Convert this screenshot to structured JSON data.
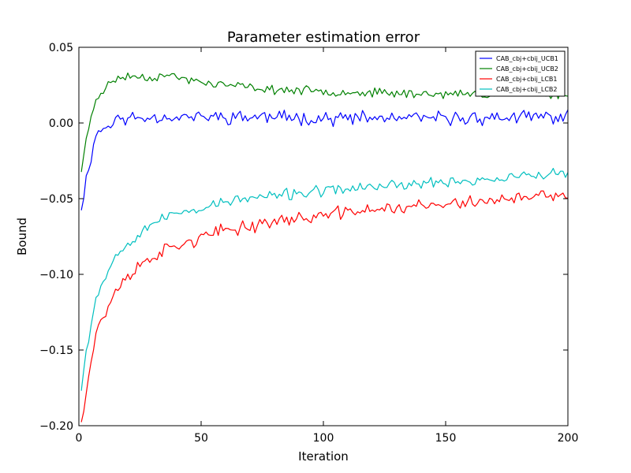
{
  "chart_data": {
    "type": "line",
    "title": "Parameter estimation error",
    "xlabel": "Iteration",
    "ylabel": "Bound",
    "xlim": [
      0,
      200
    ],
    "ylim": [
      -0.2,
      0.05
    ],
    "xticks": [
      0,
      50,
      100,
      150,
      200
    ],
    "yticks": [
      -0.2,
      -0.15,
      -0.1,
      -0.05,
      0.0,
      0.05
    ],
    "xtick_labels": [
      "0",
      "50",
      "100",
      "150",
      "200"
    ],
    "ytick_labels": [
      "−0.20",
      "−0.15",
      "−0.10",
      "−0.05",
      "0.00",
      "0.05"
    ],
    "grid": false,
    "legend_position": "top-right",
    "x_start": 1,
    "x_end": 200,
    "series": [
      {
        "name": "CAB_cbj+cbij_UCB1",
        "color": "#0000ff",
        "curve": {
          "x": [
            1,
            3,
            5,
            7,
            10,
            12,
            15,
            20,
            30,
            40,
            50,
            60,
            80,
            100,
            120,
            150,
            200
          ],
          "y": [
            -0.055,
            -0.038,
            -0.022,
            -0.007,
            -0.004,
            -0.001,
            0.002,
            0.003,
            0.004,
            0.004,
            0.004,
            0.004,
            0.004,
            0.003,
            0.003,
            0.003,
            0.004
          ]
        },
        "noise": 0.0035,
        "seed": 11
      },
      {
        "name": "CAB_cbj+cbij_UCB2",
        "color": "#008000",
        "curve": {
          "x": [
            1,
            3,
            5,
            7,
            10,
            15,
            20,
            30,
            35,
            40,
            50,
            60,
            80,
            100,
            120,
            150,
            200
          ],
          "y": [
            -0.031,
            -0.012,
            0.004,
            0.016,
            0.022,
            0.029,
            0.031,
            0.03,
            0.032,
            0.03,
            0.027,
            0.025,
            0.022,
            0.021,
            0.02,
            0.019,
            0.019
          ]
        },
        "noise": 0.0022,
        "seed": 23
      },
      {
        "name": "CAB_cbj+cbij_LCB1",
        "color": "#ff0000",
        "curve": {
          "x": [
            1,
            3,
            5,
            7,
            10,
            15,
            20,
            30,
            40,
            50,
            60,
            80,
            100,
            120,
            150,
            170,
            200
          ],
          "y": [
            -0.197,
            -0.175,
            -0.158,
            -0.138,
            -0.128,
            -0.112,
            -0.101,
            -0.088,
            -0.081,
            -0.076,
            -0.071,
            -0.065,
            -0.061,
            -0.057,
            -0.054,
            -0.051,
            -0.048
          ]
        },
        "noise": 0.0035,
        "seed": 37
      },
      {
        "name": "CAB_cbj+cbij_LCB2",
        "color": "#00bfbf",
        "curve": {
          "x": [
            1,
            3,
            5,
            7,
            10,
            15,
            20,
            30,
            40,
            50,
            60,
            80,
            100,
            120,
            150,
            170,
            200
          ],
          "y": [
            -0.174,
            -0.15,
            -0.134,
            -0.114,
            -0.104,
            -0.088,
            -0.079,
            -0.066,
            -0.06,
            -0.056,
            -0.052,
            -0.048,
            -0.045,
            -0.042,
            -0.039,
            -0.037,
            -0.033
          ]
        },
        "noise": 0.0028,
        "seed": 53
      }
    ]
  }
}
